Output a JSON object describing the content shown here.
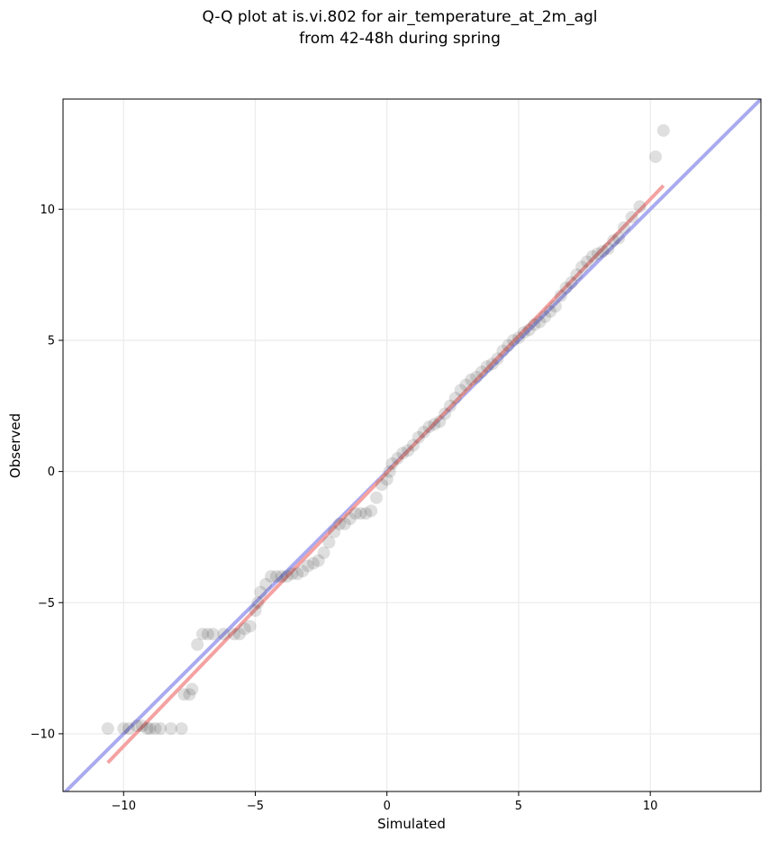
{
  "chart_data": {
    "type": "scatter",
    "title_line1": "Q-Q plot at is.vi.802 for air_temperature_at_2m_agl",
    "title_line2": "from 42-48h during spring",
    "xlabel": "Simulated",
    "ylabel": "Observed",
    "xlim": [
      -12.3,
      14.2
    ],
    "ylim": [
      -12.2,
      14.2
    ],
    "x_ticks": [
      -10,
      -5,
      0,
      5,
      10
    ],
    "y_ticks": [
      -10,
      -5,
      0,
      5,
      10
    ],
    "x_tick_labels": [
      "−10",
      "−5",
      "0",
      "5",
      "10"
    ],
    "y_tick_labels": [
      "−10",
      "−5",
      "0",
      "5",
      "10"
    ],
    "grid": true,
    "colors": {
      "points": "#1a1a1a",
      "identity_line": "#aaaaf0",
      "fit_line": "#f4a2a2",
      "axes": "#000000",
      "grid": "#ebebeb"
    },
    "identity_line": {
      "x": [
        -12.3,
        14.2
      ],
      "y": [
        -12.3,
        14.2
      ]
    },
    "fit_line": {
      "x": [
        -10.6,
        10.5
      ],
      "y": [
        -11.1,
        10.9
      ]
    },
    "points": [
      [
        -10.6,
        -9.8
      ],
      [
        -10.0,
        -9.8
      ],
      [
        -9.8,
        -9.8
      ],
      [
        -9.5,
        -9.7
      ],
      [
        -9.3,
        -9.7
      ],
      [
        -9.1,
        -9.8
      ],
      [
        -9.0,
        -9.8
      ],
      [
        -8.8,
        -9.8
      ],
      [
        -8.6,
        -9.8
      ],
      [
        -8.2,
        -9.8
      ],
      [
        -7.8,
        -9.8
      ],
      [
        -7.7,
        -8.5
      ],
      [
        -7.5,
        -8.5
      ],
      [
        -7.4,
        -8.3
      ],
      [
        -7.2,
        -6.6
      ],
      [
        -7.0,
        -6.2
      ],
      [
        -6.8,
        -6.2
      ],
      [
        -6.6,
        -6.2
      ],
      [
        -6.2,
        -6.2
      ],
      [
        -5.8,
        -6.2
      ],
      [
        -5.6,
        -6.2
      ],
      [
        -5.4,
        -6.0
      ],
      [
        -5.2,
        -5.9
      ],
      [
        -5.0,
        -5.3
      ],
      [
        -4.9,
        -5.0
      ],
      [
        -4.8,
        -4.6
      ],
      [
        -4.6,
        -4.3
      ],
      [
        -4.4,
        -4.0
      ],
      [
        -4.2,
        -4.0
      ],
      [
        -4.0,
        -4.0
      ],
      [
        -3.8,
        -4.0
      ],
      [
        -3.6,
        -3.9
      ],
      [
        -3.4,
        -3.9
      ],
      [
        -3.2,
        -3.8
      ],
      [
        -3.0,
        -3.6
      ],
      [
        -2.8,
        -3.5
      ],
      [
        -2.6,
        -3.4
      ],
      [
        -2.4,
        -3.1
      ],
      [
        -2.2,
        -2.7
      ],
      [
        -2.0,
        -2.3
      ],
      [
        -1.8,
        -2.0
      ],
      [
        -1.6,
        -2.0
      ],
      [
        -1.4,
        -1.8
      ],
      [
        -1.2,
        -1.6
      ],
      [
        -1.0,
        -1.6
      ],
      [
        -0.8,
        -1.6
      ],
      [
        -0.6,
        -1.5
      ],
      [
        -0.4,
        -1.0
      ],
      [
        -0.2,
        -0.5
      ],
      [
        0.0,
        -0.3
      ],
      [
        0.1,
        0.0
      ],
      [
        0.2,
        0.3
      ],
      [
        0.4,
        0.5
      ],
      [
        0.6,
        0.7
      ],
      [
        0.8,
        0.8
      ],
      [
        1.0,
        1.0
      ],
      [
        1.2,
        1.3
      ],
      [
        1.4,
        1.5
      ],
      [
        1.6,
        1.7
      ],
      [
        1.8,
        1.8
      ],
      [
        2.0,
        1.9
      ],
      [
        2.2,
        2.2
      ],
      [
        2.4,
        2.5
      ],
      [
        2.6,
        2.8
      ],
      [
        2.8,
        3.1
      ],
      [
        3.0,
        3.3
      ],
      [
        3.2,
        3.5
      ],
      [
        3.4,
        3.6
      ],
      [
        3.6,
        3.8
      ],
      [
        3.8,
        4.0
      ],
      [
        4.0,
        4.1
      ],
      [
        4.2,
        4.3
      ],
      [
        4.4,
        4.6
      ],
      [
        4.6,
        4.8
      ],
      [
        4.8,
        5.0
      ],
      [
        5.0,
        5.1
      ],
      [
        5.2,
        5.3
      ],
      [
        5.4,
        5.4
      ],
      [
        5.6,
        5.6
      ],
      [
        5.8,
        5.7
      ],
      [
        6.0,
        5.9
      ],
      [
        6.2,
        6.1
      ],
      [
        6.4,
        6.3
      ],
      [
        6.6,
        6.7
      ],
      [
        6.8,
        7.0
      ],
      [
        7.0,
        7.2
      ],
      [
        7.2,
        7.5
      ],
      [
        7.4,
        7.8
      ],
      [
        7.6,
        8.0
      ],
      [
        7.8,
        8.2
      ],
      [
        8.0,
        8.3
      ],
      [
        8.2,
        8.4
      ],
      [
        8.4,
        8.5
      ],
      [
        8.6,
        8.8
      ],
      [
        8.8,
        8.9
      ],
      [
        9.0,
        9.3
      ],
      [
        9.3,
        9.7
      ],
      [
        9.6,
        10.1
      ],
      [
        10.2,
        12.0
      ],
      [
        10.5,
        13.0
      ]
    ]
  }
}
